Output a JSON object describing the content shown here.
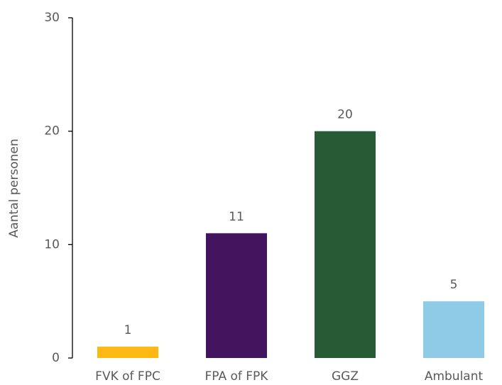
{
  "chart_data": {
    "type": "bar",
    "y_label": "Aantal personen",
    "categories": [
      "FVK of FPC",
      "FPA of FPK",
      "GGZ",
      "Ambulant"
    ],
    "values": [
      1,
      11,
      20,
      5
    ],
    "colors": [
      "#fdb813",
      "#43145e",
      "#265b35",
      "#8fcae6"
    ],
    "ylim": [
      0,
      30
    ],
    "yticks": [
      0,
      10,
      20,
      30
    ],
    "grid": false,
    "data_labels": true
  }
}
